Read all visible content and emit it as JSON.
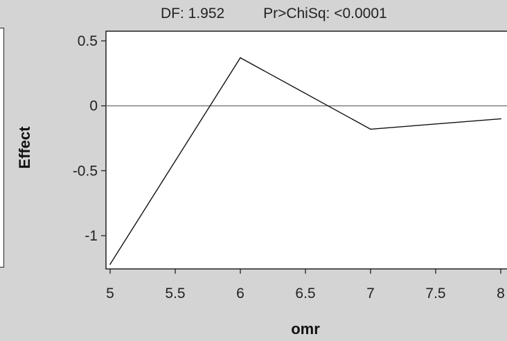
{
  "header": {
    "df_text": "DF: 1.952",
    "prob_text": "Pr>ChiSq: <0.0001"
  },
  "chart_data": {
    "type": "line",
    "title": "",
    "xlabel": "omr",
    "ylabel": "Effect",
    "x": [
      5,
      6,
      7,
      8
    ],
    "series": [
      {
        "values": [
          -1.22,
          0.37,
          -0.18,
          -0.1
        ]
      }
    ],
    "xlim": [
      5,
      8
    ],
    "ylim": [
      -1.25,
      0.55
    ],
    "xticks": [
      5,
      5.5,
      6,
      6.5,
      7,
      7.5,
      8
    ],
    "xtick_labels": [
      "5",
      "5.5",
      "6",
      "6.5",
      "7",
      "7.5",
      "8"
    ],
    "yticks": [
      0.5,
      0,
      -0.5,
      -1
    ],
    "ytick_labels": [
      "0.5",
      "0",
      "-0.5",
      "-1"
    ],
    "reference_line": 0,
    "grid": false,
    "colors": {
      "line": "#111111",
      "reference": "#777777",
      "plot_bg": "#ffffff",
      "page_bg": "#d4d4d4"
    }
  }
}
